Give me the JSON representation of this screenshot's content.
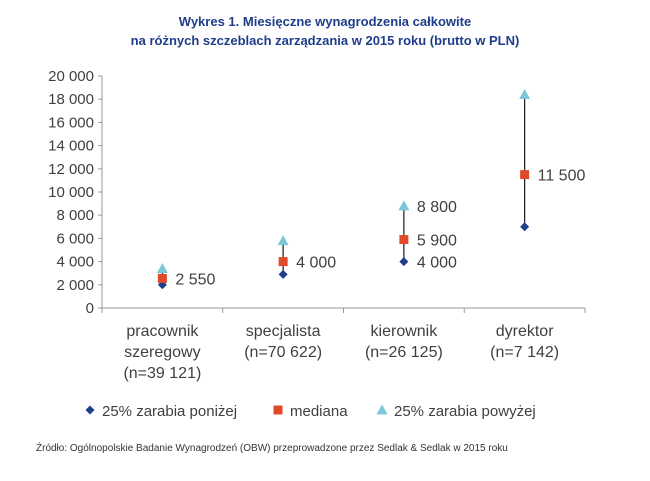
{
  "chart_data": {
    "type": "scatter",
    "title": "Wykres 1. Miesięczne wynagrodzenia całkowite",
    "subtitle": "na różnych szczeblach zarządzania w 2015 roku (brutto w PLN)",
    "categories": [
      [
        "pracownik",
        "szeregowy",
        "(n=39 121)"
      ],
      [
        "specjalista",
        "(n=70 622)"
      ],
      [
        "kierownik",
        "(n=26 125)"
      ],
      [
        "dyrektor",
        "(n=7 142)"
      ]
    ],
    "ylim": [
      0,
      20000
    ],
    "yticks": [
      0,
      2000,
      4000,
      6000,
      8000,
      10000,
      12000,
      14000,
      16000,
      18000,
      20000
    ],
    "ytick_labels": [
      "0",
      "2 000",
      "4 000",
      "6 000",
      "8 000",
      "10 000",
      "12 000",
      "14 000",
      "16 000",
      "18 000",
      "20 000"
    ],
    "series": [
      {
        "name": "25% zarabia poniżej",
        "values": [
          2000,
          2900,
          4000,
          7000
        ],
        "labels": [
          "",
          "",
          "4 000",
          ""
        ],
        "color": "#1f3d8a",
        "marker": "diamond"
      },
      {
        "name": "mediana",
        "values": [
          2550,
          4000,
          5900,
          11500
        ],
        "labels": [
          "2 550",
          "4 000",
          "5 900",
          "11 500"
        ],
        "color": "#e04a2a",
        "marker": "square"
      },
      {
        "name": "25% zarabia powyżej",
        "values": [
          3400,
          5800,
          8800,
          18400
        ],
        "labels": [
          "",
          "",
          "8 800",
          ""
        ],
        "color": "#7cc6d9",
        "marker": "triangle"
      }
    ],
    "grid": false,
    "legend": "bottom"
  },
  "source": "Źródło: Ogólnopolskie Badanie Wynagrodzeń (OBW) przeprowadzone przez Sedlak & Sedlak w 2015 roku"
}
